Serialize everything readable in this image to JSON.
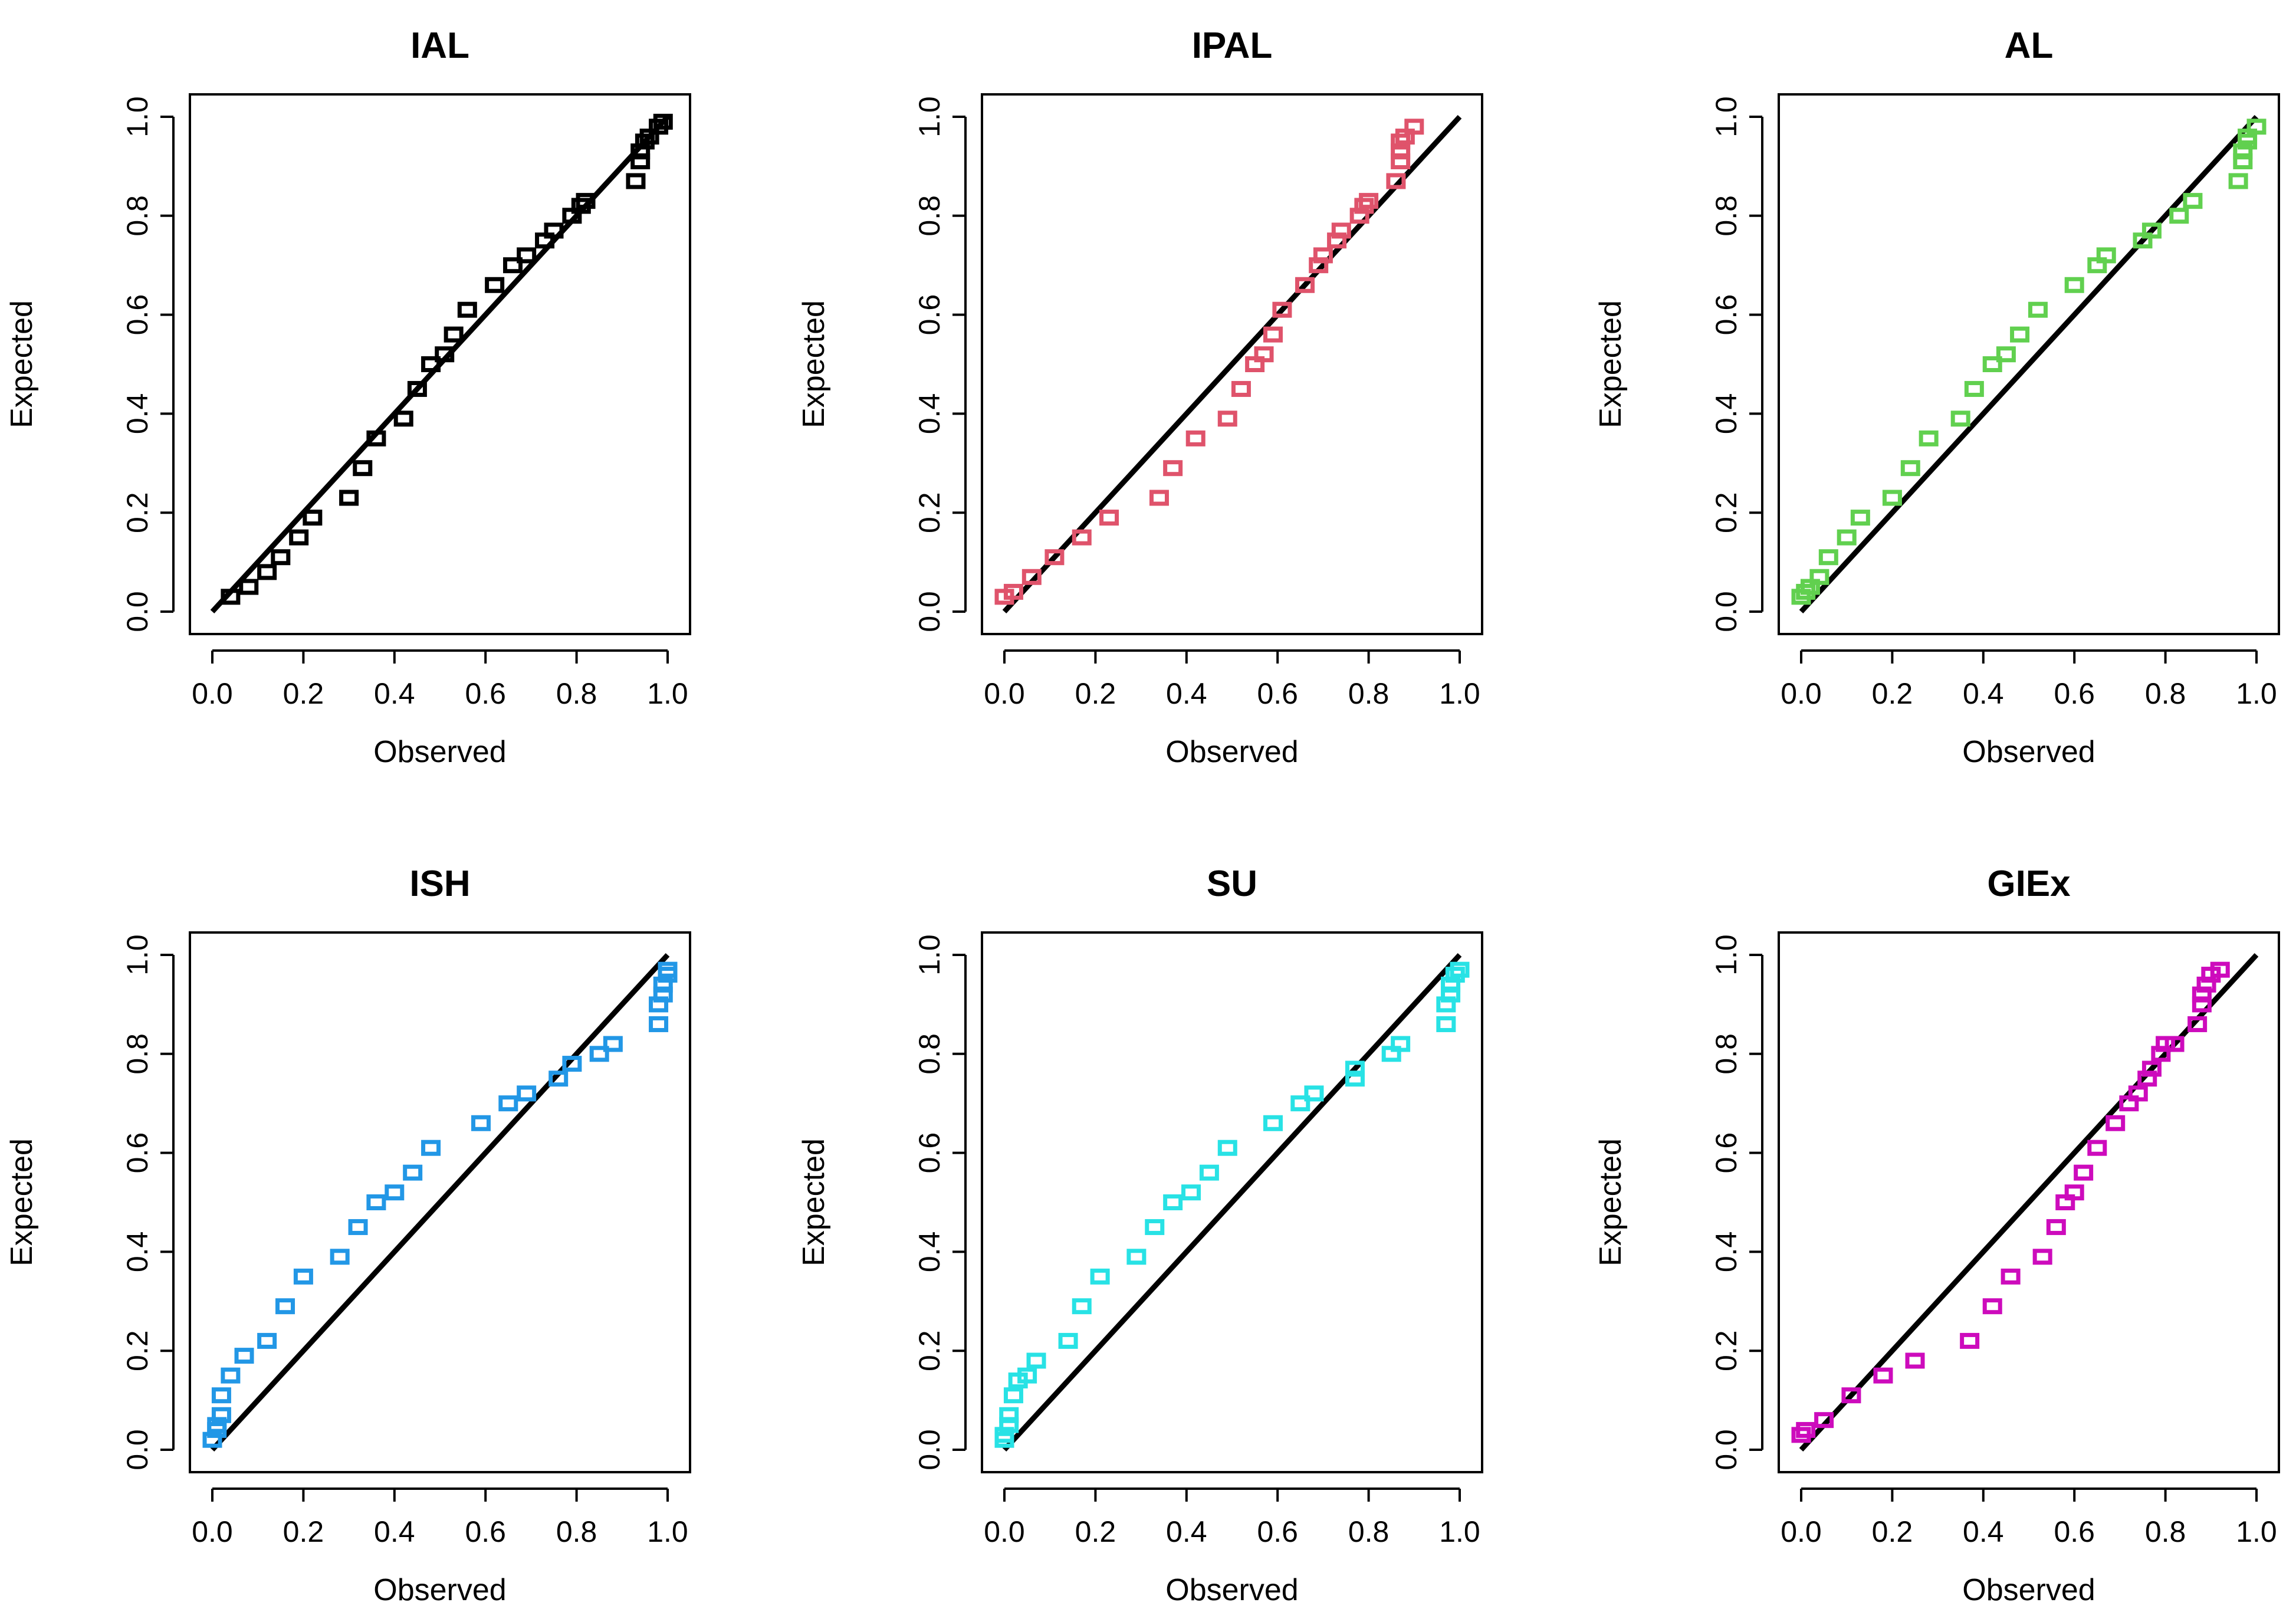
{
  "chart_data": [
    {
      "type": "scatter",
      "title": "IAL",
      "xlabel": "Observed",
      "ylabel": "Expected",
      "xlim": [
        0,
        1
      ],
      "ylim": [
        0,
        1
      ],
      "xticks": [
        "0.0",
        "0.2",
        "0.4",
        "0.6",
        "0.8",
        "1.0"
      ],
      "yticks": [
        "0.0",
        "0.2",
        "0.4",
        "0.6",
        "0.8",
        "1.0"
      ],
      "color": "#000000",
      "reference_line": "y = x",
      "x": [
        0.04,
        0.08,
        0.12,
        0.15,
        0.19,
        0.22,
        0.3,
        0.33,
        0.36,
        0.42,
        0.45,
        0.48,
        0.51,
        0.53,
        0.56,
        0.62,
        0.66,
        0.69,
        0.73,
        0.75,
        0.79,
        0.81,
        0.82,
        0.93,
        0.94,
        0.94,
        0.95,
        0.96,
        0.98,
        0.99
      ],
      "y": [
        0.03,
        0.05,
        0.08,
        0.11,
        0.15,
        0.19,
        0.23,
        0.29,
        0.35,
        0.39,
        0.45,
        0.5,
        0.52,
        0.56,
        0.61,
        0.66,
        0.7,
        0.72,
        0.75,
        0.77,
        0.8,
        0.82,
        0.83,
        0.87,
        0.91,
        0.93,
        0.95,
        0.96,
        0.98,
        0.99
      ]
    },
    {
      "type": "scatter",
      "title": "IPAL",
      "xlabel": "Observed",
      "ylabel": "Expected",
      "xlim": [
        0,
        1
      ],
      "ylim": [
        0,
        1
      ],
      "xticks": [
        "0.0",
        "0.2",
        "0.4",
        "0.6",
        "0.8",
        "1.0"
      ],
      "yticks": [
        "0.0",
        "0.2",
        "0.4",
        "0.6",
        "0.8",
        "1.0"
      ],
      "color": "#DF536B",
      "reference_line": "y = x",
      "x": [
        0.0,
        0.02,
        0.06,
        0.11,
        0.17,
        0.23,
        0.34,
        0.37,
        0.42,
        0.49,
        0.52,
        0.55,
        0.57,
        0.59,
        0.61,
        0.66,
        0.69,
        0.7,
        0.73,
        0.74,
        0.78,
        0.79,
        0.8,
        0.86,
        0.87,
        0.87,
        0.87,
        0.88,
        0.9
      ],
      "y": [
        0.03,
        0.04,
        0.07,
        0.11,
        0.15,
        0.19,
        0.23,
        0.29,
        0.35,
        0.39,
        0.45,
        0.5,
        0.52,
        0.56,
        0.61,
        0.66,
        0.7,
        0.72,
        0.75,
        0.77,
        0.8,
        0.82,
        0.83,
        0.87,
        0.91,
        0.93,
        0.95,
        0.96,
        0.98
      ]
    },
    {
      "type": "scatter",
      "title": "AL",
      "xlabel": "Observed",
      "ylabel": "Expected",
      "xlim": [
        0,
        1
      ],
      "ylim": [
        0,
        1
      ],
      "xticks": [
        "0.0",
        "0.2",
        "0.4",
        "0.6",
        "0.8",
        "1.0"
      ],
      "yticks": [
        "0.0",
        "0.2",
        "0.4",
        "0.6",
        "0.8",
        "1.0"
      ],
      "color": "#61D04F",
      "reference_line": "y = x",
      "x": [
        0.0,
        0.01,
        0.02,
        0.04,
        0.06,
        0.1,
        0.13,
        0.2,
        0.24,
        0.28,
        0.35,
        0.38,
        0.42,
        0.45,
        0.48,
        0.52,
        0.6,
        0.65,
        0.67,
        0.75,
        0.77,
        0.83,
        0.86,
        0.96,
        0.97,
        0.97,
        0.98,
        0.98,
        1.0
      ],
      "y": [
        0.03,
        0.04,
        0.05,
        0.07,
        0.11,
        0.15,
        0.19,
        0.23,
        0.29,
        0.35,
        0.39,
        0.45,
        0.5,
        0.52,
        0.56,
        0.61,
        0.66,
        0.7,
        0.72,
        0.75,
        0.77,
        0.8,
        0.83,
        0.87,
        0.91,
        0.93,
        0.95,
        0.96,
        0.98
      ]
    },
    {
      "type": "scatter",
      "title": "ISH",
      "xlabel": "Observed",
      "ylabel": "Expected",
      "xlim": [
        0,
        1
      ],
      "ylim": [
        0,
        1
      ],
      "xticks": [
        "0.0",
        "0.2",
        "0.4",
        "0.6",
        "0.8",
        "1.0"
      ],
      "yticks": [
        "0.0",
        "0.2",
        "0.4",
        "0.6",
        "0.8",
        "1.0"
      ],
      "color": "#2297E6",
      "reference_line": "y = x",
      "x": [
        0.0,
        0.01,
        0.01,
        0.02,
        0.02,
        0.04,
        0.07,
        0.12,
        0.16,
        0.2,
        0.28,
        0.32,
        0.36,
        0.4,
        0.44,
        0.48,
        0.59,
        0.65,
        0.69,
        0.76,
        0.79,
        0.85,
        0.88,
        0.98,
        0.98,
        0.99,
        0.99,
        1.0,
        1.0
      ],
      "y": [
        0.02,
        0.04,
        0.05,
        0.07,
        0.11,
        0.15,
        0.19,
        0.22,
        0.29,
        0.35,
        0.39,
        0.45,
        0.5,
        0.52,
        0.56,
        0.61,
        0.66,
        0.7,
        0.72,
        0.75,
        0.78,
        0.8,
        0.82,
        0.86,
        0.9,
        0.92,
        0.94,
        0.96,
        0.97
      ]
    },
    {
      "type": "scatter",
      "title": "SU",
      "xlabel": "Observed",
      "ylabel": "Expected",
      "xlim": [
        0,
        1
      ],
      "ylim": [
        0,
        1
      ],
      "xticks": [
        "0.0",
        "0.2",
        "0.4",
        "0.6",
        "0.8",
        "1.0"
      ],
      "yticks": [
        "0.0",
        "0.2",
        "0.4",
        "0.6",
        "0.8",
        "1.0"
      ],
      "color": "#28E2E5",
      "reference_line": "y = x",
      "x": [
        0.0,
        0.0,
        0.01,
        0.01,
        0.02,
        0.03,
        0.05,
        0.07,
        0.14,
        0.17,
        0.21,
        0.29,
        0.33,
        0.37,
        0.41,
        0.45,
        0.49,
        0.59,
        0.65,
        0.68,
        0.77,
        0.77,
        0.85,
        0.87,
        0.97,
        0.97,
        0.98,
        0.98,
        0.99,
        1.0
      ],
      "y": [
        0.02,
        0.03,
        0.05,
        0.07,
        0.11,
        0.14,
        0.15,
        0.18,
        0.22,
        0.29,
        0.35,
        0.39,
        0.45,
        0.5,
        0.52,
        0.56,
        0.61,
        0.66,
        0.7,
        0.72,
        0.75,
        0.77,
        0.8,
        0.82,
        0.86,
        0.9,
        0.92,
        0.94,
        0.96,
        0.97
      ]
    },
    {
      "type": "scatter",
      "title": "GIEx",
      "xlabel": "Observed",
      "ylabel": "Expected",
      "xlim": [
        0,
        1
      ],
      "ylim": [
        0,
        1
      ],
      "xticks": [
        "0.0",
        "0.2",
        "0.4",
        "0.6",
        "0.8",
        "1.0"
      ],
      "yticks": [
        "0.0",
        "0.2",
        "0.4",
        "0.6",
        "0.8",
        "1.0"
      ],
      "color": "#CD0BBC",
      "reference_line": "y = x",
      "x": [
        0.0,
        0.01,
        0.05,
        0.11,
        0.18,
        0.25,
        0.37,
        0.42,
        0.46,
        0.53,
        0.56,
        0.58,
        0.6,
        0.62,
        0.65,
        0.69,
        0.72,
        0.74,
        0.76,
        0.77,
        0.79,
        0.8,
        0.82,
        0.87,
        0.88,
        0.88,
        0.89,
        0.9,
        0.92
      ],
      "y": [
        0.03,
        0.04,
        0.06,
        0.11,
        0.15,
        0.18,
        0.22,
        0.29,
        0.35,
        0.39,
        0.45,
        0.5,
        0.52,
        0.56,
        0.61,
        0.66,
        0.7,
        0.72,
        0.75,
        0.77,
        0.8,
        0.82,
        0.82,
        0.86,
        0.9,
        0.92,
        0.94,
        0.96,
        0.97
      ]
    }
  ]
}
